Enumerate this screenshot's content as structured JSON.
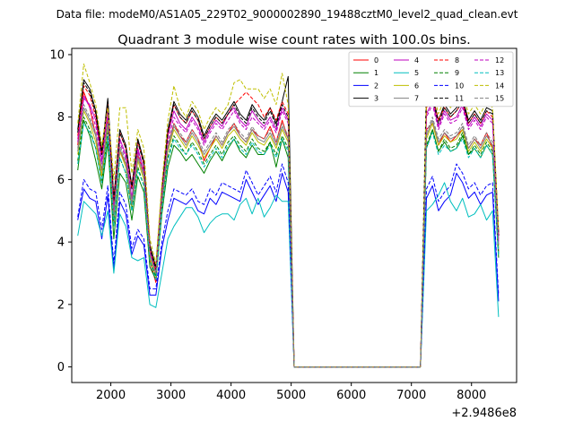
{
  "figure": {
    "suptitle": "Data file: modeM0/AS1A05_229T02_9000002890_19488cztM0_level2_quad_clean.evt"
  },
  "chart_data": {
    "type": "line",
    "title": "Quadrant 3 module wise count rates with 100.0s bins.",
    "xlabel": "",
    "ylabel": "",
    "x_offset_label": "+2.9486e8",
    "xlim": [
      1350,
      8750
    ],
    "ylim": [
      -0.5,
      10.2
    ],
    "xticks": [
      2000,
      3000,
      4000,
      5000,
      6000,
      7000,
      8000
    ],
    "xtick_labels": [
      "2000",
      "3000",
      "4000",
      "5000",
      "6000",
      "7000",
      "8000"
    ],
    "yticks": [
      0,
      2,
      4,
      6,
      8,
      10
    ],
    "ytick_labels": [
      "0",
      "2",
      "4",
      "6",
      "8",
      "10"
    ],
    "grid": false,
    "legend_position": "top-right",
    "legend_columns": 4,
    "x": [
      1450,
      1550,
      1650,
      1750,
      1850,
      1950,
      2050,
      2150,
      2250,
      2350,
      2450,
      2550,
      2650,
      2750,
      2850,
      2950,
      3050,
      3150,
      3250,
      3350,
      3450,
      3550,
      3650,
      3750,
      3850,
      3950,
      4050,
      4150,
      4250,
      4350,
      4450,
      4550,
      4650,
      4750,
      4850,
      4950,
      5050,
      5150,
      7150,
      7250,
      7350,
      7450,
      7550,
      7650,
      7750,
      7850,
      7950,
      8050,
      8150,
      8250,
      8350,
      8450
    ],
    "series": [
      {
        "name": "0",
        "color": "#ff0000",
        "linestyle": "solid",
        "values": [
          7.1,
          8.8,
          8.3,
          7.4,
          6.1,
          8.0,
          4.6,
          6.9,
          6.5,
          5.1,
          6.8,
          6.2,
          3.4,
          2.7,
          5.2,
          7.0,
          7.8,
          7.4,
          7.2,
          7.6,
          7.3,
          6.6,
          7.0,
          7.4,
          7.1,
          7.5,
          7.8,
          7.4,
          7.2,
          7.6,
          7.4,
          7.3,
          7.7,
          7.2,
          7.9,
          7.3,
          0,
          0,
          0,
          7.6,
          7.8,
          7.1,
          7.5,
          7.2,
          7.4,
          7.6,
          7.0,
          7.3,
          7.1,
          7.5,
          7.0,
          3.7
        ]
      },
      {
        "name": "1",
        "color": "#008000",
        "linestyle": "solid",
        "values": [
          6.3,
          7.9,
          7.4,
          6.6,
          5.7,
          7.2,
          4.1,
          6.2,
          5.9,
          4.7,
          6.1,
          5.6,
          3.2,
          2.8,
          4.9,
          6.4,
          7.1,
          6.9,
          6.6,
          6.8,
          6.5,
          6.2,
          6.6,
          6.9,
          6.6,
          7.0,
          7.3,
          6.9,
          6.7,
          7.1,
          6.8,
          6.8,
          7.2,
          6.4,
          7.3,
          6.7,
          0,
          0,
          0,
          7.0,
          7.6,
          6.9,
          7.2,
          6.9,
          7.0,
          7.4,
          6.8,
          7.0,
          6.7,
          7.1,
          6.8,
          3.5
        ]
      },
      {
        "name": "2",
        "color": "#0000ff",
        "linestyle": "solid",
        "values": [
          4.7,
          5.7,
          5.4,
          5.3,
          4.1,
          5.5,
          3.1,
          5.3,
          4.9,
          3.6,
          4.2,
          3.9,
          2.3,
          2.3,
          3.8,
          4.7,
          5.4,
          5.3,
          5.2,
          5.4,
          5.0,
          4.9,
          5.4,
          5.2,
          5.6,
          5.5,
          5.4,
          5.3,
          6.0,
          5.6,
          5.2,
          5.5,
          5.8,
          5.3,
          6.2,
          5.6,
          0,
          0,
          0,
          5.4,
          5.8,
          5.0,
          5.3,
          5.5,
          6.2,
          5.9,
          5.4,
          5.6,
          5.2,
          5.5,
          5.6,
          2.1
        ]
      },
      {
        "name": "3",
        "color": "#000000",
        "linestyle": "solid",
        "values": [
          7.6,
          9.2,
          8.9,
          8.2,
          6.9,
          8.6,
          5.4,
          7.6,
          7.1,
          5.8,
          7.3,
          6.6,
          3.9,
          3.2,
          5.7,
          7.6,
          8.5,
          8.1,
          7.9,
          8.3,
          8.0,
          7.4,
          7.8,
          8.1,
          7.9,
          8.2,
          8.5,
          8.1,
          7.9,
          8.4,
          8.1,
          7.9,
          8.3,
          7.8,
          8.5,
          9.3,
          0,
          0,
          0,
          8.4,
          8.7,
          7.9,
          8.4,
          8.1,
          8.3,
          8.6,
          7.9,
          8.2,
          7.9,
          8.3,
          8.2,
          4.3
        ]
      },
      {
        "name": "4",
        "color": "#bf00bf",
        "linestyle": "solid",
        "values": [
          7.3,
          8.6,
          8.4,
          7.9,
          6.6,
          8.3,
          5.1,
          7.3,
          6.8,
          5.4,
          7.0,
          6.3,
          3.7,
          3.0,
          5.6,
          7.4,
          8.2,
          7.8,
          7.6,
          8.0,
          7.7,
          7.2,
          7.6,
          7.9,
          7.7,
          8.1,
          8.3,
          7.9,
          7.7,
          8.2,
          7.9,
          7.7,
          8.0,
          7.6,
          8.3,
          7.9,
          0,
          0,
          0,
          8.1,
          8.5,
          7.7,
          8.2,
          7.9,
          8.0,
          8.4,
          7.7,
          8.0,
          7.7,
          8.1,
          7.9,
          4.1
        ]
      },
      {
        "name": "5",
        "color": "#00bfbf",
        "linestyle": "solid",
        "values": [
          4.2,
          5.3,
          5.1,
          4.9,
          4.2,
          5.0,
          3.0,
          4.9,
          4.5,
          3.5,
          3.4,
          3.5,
          2.0,
          1.9,
          3.0,
          4.1,
          4.5,
          4.8,
          5.1,
          5.1,
          4.8,
          4.3,
          4.6,
          4.8,
          4.9,
          4.9,
          4.7,
          5.2,
          5.4,
          4.9,
          5.4,
          4.8,
          5.1,
          5.5,
          5.3,
          5.3,
          0,
          0,
          0,
          5.0,
          5.2,
          5.5,
          5.9,
          5.3,
          5.0,
          5.4,
          4.8,
          4.9,
          5.2,
          4.7,
          5.0,
          1.6
        ]
      },
      {
        "name": "6",
        "color": "#bfbf00",
        "linestyle": "solid",
        "values": [
          6.8,
          8.2,
          7.8,
          7.2,
          6.1,
          7.7,
          4.7,
          6.9,
          6.4,
          5.1,
          6.6,
          6.0,
          3.5,
          2.9,
          5.2,
          6.9,
          7.6,
          7.3,
          7.0,
          7.4,
          7.1,
          6.7,
          7.0,
          7.3,
          7.0,
          7.4,
          7.6,
          7.3,
          7.1,
          7.5,
          7.2,
          7.1,
          7.4,
          7.0,
          7.6,
          7.2,
          0,
          0,
          0,
          7.3,
          7.8,
          7.1,
          7.4,
          7.2,
          7.3,
          7.6,
          6.9,
          7.2,
          6.9,
          7.3,
          7.0,
          3.8
        ]
      },
      {
        "name": "7",
        "color": "#808080",
        "linestyle": "solid",
        "values": [
          6.9,
          8.3,
          7.9,
          7.4,
          6.3,
          7.8,
          4.8,
          7.0,
          6.5,
          5.2,
          6.7,
          6.1,
          3.6,
          3.0,
          5.3,
          7.0,
          7.7,
          7.4,
          7.1,
          7.5,
          7.2,
          6.8,
          7.1,
          7.4,
          7.1,
          7.5,
          7.7,
          7.4,
          7.2,
          7.6,
          7.3,
          7.2,
          7.5,
          7.1,
          7.7,
          7.3,
          0,
          0,
          0,
          7.4,
          7.9,
          7.2,
          7.5,
          7.3,
          7.4,
          7.7,
          7.0,
          7.3,
          7.0,
          7.4,
          7.1,
          3.9
        ]
      },
      {
        "name": "8",
        "color": "#ff0000",
        "linestyle": "dashed",
        "values": [
          7.4,
          9.0,
          8.7,
          8.0,
          6.8,
          8.4,
          5.3,
          7.5,
          7.0,
          5.7,
          7.2,
          6.5,
          3.8,
          3.1,
          5.6,
          7.5,
          8.4,
          8.0,
          7.8,
          8.2,
          7.9,
          7.3,
          7.7,
          8.0,
          7.8,
          8.1,
          8.4,
          8.6,
          8.8,
          8.6,
          8.4,
          8.0,
          8.3,
          7.9,
          8.5,
          8.1,
          0,
          0,
          0,
          8.3,
          8.6,
          7.9,
          8.3,
          8.0,
          8.2,
          8.5,
          7.8,
          8.1,
          7.8,
          8.2,
          8.0,
          4.2
        ]
      },
      {
        "name": "9",
        "color": "#008000",
        "linestyle": "dashed",
        "values": [
          6.6,
          8.0,
          7.6,
          7.0,
          5.9,
          7.5,
          4.5,
          6.7,
          6.2,
          5.0,
          6.4,
          5.8,
          3.4,
          2.9,
          5.1,
          6.7,
          7.4,
          7.1,
          6.8,
          7.2,
          6.9,
          6.5,
          6.8,
          7.1,
          6.8,
          7.2,
          7.4,
          7.1,
          6.9,
          7.3,
          7.0,
          6.9,
          7.2,
          6.8,
          7.4,
          7.0,
          0,
          0,
          0,
          7.1,
          7.6,
          6.9,
          7.3,
          7.0,
          7.1,
          7.5,
          6.8,
          7.1,
          6.8,
          7.2,
          6.9,
          3.6
        ]
      },
      {
        "name": "10",
        "color": "#0000ff",
        "linestyle": "dashed",
        "values": [
          4.8,
          6.0,
          5.7,
          5.6,
          4.4,
          5.8,
          3.3,
          5.6,
          5.2,
          3.8,
          4.4,
          4.1,
          2.5,
          2.5,
          4.0,
          5.0,
          5.7,
          5.6,
          5.5,
          5.7,
          5.3,
          5.2,
          5.7,
          5.5,
          5.9,
          5.8,
          5.7,
          5.6,
          6.3,
          5.9,
          5.5,
          5.8,
          6.1,
          5.6,
          6.5,
          5.9,
          0,
          0,
          0,
          5.7,
          6.1,
          5.3,
          5.6,
          5.8,
          6.5,
          6.2,
          5.7,
          5.9,
          5.5,
          5.8,
          5.9,
          2.3
        ]
      },
      {
        "name": "11",
        "color": "#000000",
        "linestyle": "dashed",
        "values": [
          7.5,
          9.1,
          8.8,
          8.1,
          6.8,
          8.5,
          5.3,
          7.5,
          7.0,
          5.7,
          7.2,
          6.5,
          3.8,
          3.1,
          5.6,
          7.5,
          8.4,
          8.0,
          7.8,
          8.2,
          7.9,
          7.3,
          7.7,
          8.0,
          7.8,
          8.1,
          8.4,
          8.0,
          7.8,
          8.3,
          8.0,
          7.8,
          8.2,
          7.7,
          8.4,
          8.0,
          0,
          0,
          0,
          9.1,
          8.6,
          7.8,
          8.3,
          8.0,
          8.2,
          8.5,
          7.8,
          8.1,
          7.8,
          8.2,
          8.1,
          4.2
        ]
      },
      {
        "name": "12",
        "color": "#bf00bf",
        "linestyle": "dashed",
        "values": [
          7.2,
          8.7,
          8.3,
          7.7,
          6.5,
          8.1,
          5.0,
          7.2,
          6.7,
          5.4,
          6.9,
          6.3,
          3.7,
          3.0,
          5.5,
          7.2,
          8.0,
          7.7,
          7.5,
          7.9,
          7.6,
          7.1,
          7.5,
          7.8,
          7.6,
          7.9,
          8.2,
          7.8,
          7.6,
          8.0,
          7.8,
          7.6,
          7.9,
          7.5,
          8.2,
          7.8,
          0,
          0,
          0,
          8.0,
          8.4,
          7.6,
          8.1,
          7.8,
          7.9,
          8.3,
          7.6,
          7.9,
          7.6,
          8.0,
          7.8,
          4.0
        ]
      },
      {
        "name": "13",
        "color": "#00bfbf",
        "linestyle": "dashed",
        "values": [
          6.5,
          7.8,
          7.5,
          7.0,
          5.9,
          7.4,
          4.5,
          6.7,
          6.2,
          5.0,
          6.3,
          5.8,
          3.4,
          2.8,
          5.0,
          6.6,
          7.3,
          7.0,
          6.8,
          7.1,
          6.8,
          6.4,
          6.7,
          7.0,
          6.7,
          7.1,
          7.3,
          7.0,
          6.8,
          7.2,
          6.9,
          6.8,
          7.1,
          6.7,
          7.3,
          6.9,
          0,
          0,
          0,
          7.0,
          7.5,
          6.8,
          7.1,
          6.9,
          7.0,
          7.3,
          6.7,
          7.0,
          6.7,
          7.1,
          6.8,
          3.6
        ]
      },
      {
        "name": "14",
        "color": "#bfbf00",
        "linestyle": "dashed",
        "values": [
          7.8,
          9.7,
          9.1,
          8.4,
          7.1,
          8.3,
          6.0,
          8.3,
          8.3,
          6.2,
          7.6,
          7.0,
          4.1,
          3.3,
          5.9,
          7.9,
          9.0,
          8.3,
          8.0,
          8.5,
          8.2,
          7.6,
          8.0,
          8.3,
          8.1,
          8.4,
          9.1,
          9.2,
          8.9,
          8.9,
          8.9,
          8.6,
          8.9,
          8.4,
          9.4,
          8.4,
          0,
          0,
          0,
          8.7,
          8.9,
          8.1,
          8.6,
          8.3,
          8.5,
          8.8,
          8.1,
          8.4,
          8.1,
          8.5,
          8.3,
          4.4
        ]
      },
      {
        "name": "15",
        "color": "#808080",
        "linestyle": "dashed",
        "values": [
          7.0,
          8.4,
          8.0,
          7.5,
          6.3,
          7.9,
          4.9,
          7.1,
          6.6,
          5.3,
          6.8,
          6.2,
          3.6,
          3.0,
          5.4,
          7.1,
          7.8,
          7.5,
          7.2,
          7.6,
          7.3,
          6.9,
          7.2,
          7.5,
          7.2,
          7.6,
          7.8,
          7.5,
          7.3,
          7.7,
          7.4,
          7.3,
          7.6,
          7.2,
          7.8,
          7.4,
          0,
          0,
          0,
          7.5,
          8.0,
          7.3,
          7.6,
          7.4,
          7.5,
          7.8,
          7.1,
          7.4,
          7.1,
          7.5,
          7.2,
          3.9
        ]
      }
    ]
  }
}
